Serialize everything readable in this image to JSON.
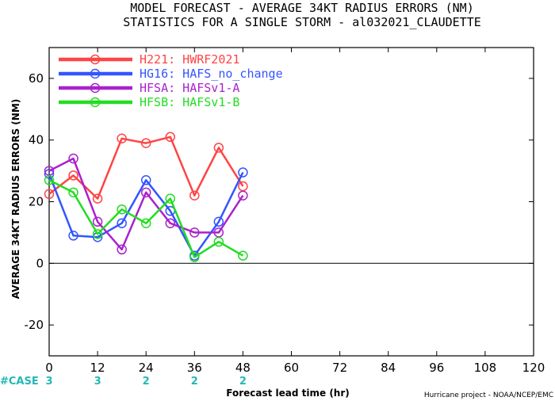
{
  "chart_data": {
    "type": "line",
    "title": "MODEL FORECAST - AVERAGE 34KT RADIUS ERRORS (NM)",
    "subtitle": "STATISTICS FOR A SINGLE STORM - al032021_CLAUDETTE",
    "xlabel": "Forecast lead time (hr)",
    "ylabel": "AVERAGE 34KT RADIUS ERRORS (NM)",
    "xlim": [
      0,
      120
    ],
    "ylim": [
      -30,
      70
    ],
    "x_ticks": [
      0,
      12,
      24,
      36,
      48,
      60,
      72,
      84,
      96,
      108,
      120
    ],
    "y_ticks": [
      -20,
      0,
      20,
      40,
      60
    ],
    "reference_line": 0,
    "grid": false,
    "legend_position": "top-left",
    "case_label": "#CASE",
    "cases": [
      {
        "x": 0,
        "count": "3"
      },
      {
        "x": 12,
        "count": "3"
      },
      {
        "x": 24,
        "count": "2"
      },
      {
        "x": 36,
        "count": "2"
      },
      {
        "x": 48,
        "count": "2"
      }
    ],
    "series": [
      {
        "name": "H221: HWRF2021",
        "color": "#ff4444",
        "x": [
          0,
          6,
          12,
          18,
          24,
          30,
          36,
          42,
          48
        ],
        "values": [
          22.5,
          28.5,
          21,
          40.5,
          39,
          41,
          22,
          37.5,
          25
        ]
      },
      {
        "name": "HG16: HAFS_no_change",
        "color": "#3355ff",
        "x": [
          0,
          6,
          12,
          18,
          24,
          30,
          36,
          42,
          48
        ],
        "values": [
          29,
          9,
          8.5,
          13,
          27,
          17,
          2.5,
          13.5,
          29.5
        ]
      },
      {
        "name": "HFSA: HAFSv1-A",
        "color": "#aa22cc",
        "x": [
          0,
          6,
          12,
          18,
          24,
          30,
          36,
          42,
          48
        ],
        "values": [
          30,
          34,
          13.5,
          4.5,
          23,
          13,
          10,
          10,
          22
        ]
      },
      {
        "name": "HFSB: HAFSv1-B",
        "color": "#22dd22",
        "x": [
          0,
          6,
          12,
          18,
          24,
          30,
          36,
          42,
          48
        ],
        "values": [
          27,
          23,
          9.5,
          17.5,
          13,
          21,
          2,
          7,
          2.5
        ]
      }
    ]
  },
  "credit": "Hurricane project - NOAA/NCEP/EMC"
}
